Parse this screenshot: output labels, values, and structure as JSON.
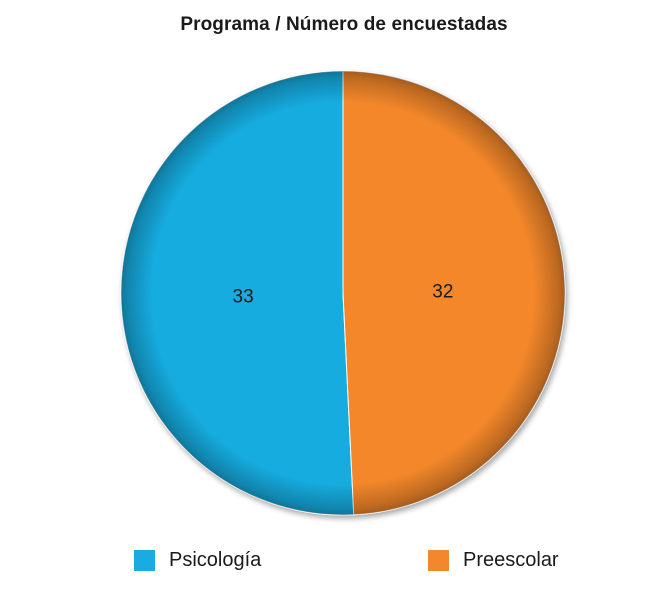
{
  "chart_data": {
    "type": "pie",
    "title": "Programa / Número de encuestadas",
    "categories": [
      "Psicología",
      "Preescolar"
    ],
    "values": [
      33,
      32
    ],
    "colors": [
      "#19ace0",
      "#f3872c"
    ],
    "data_labels": [
      "33",
      "32"
    ],
    "legend_position": "bottom"
  }
}
